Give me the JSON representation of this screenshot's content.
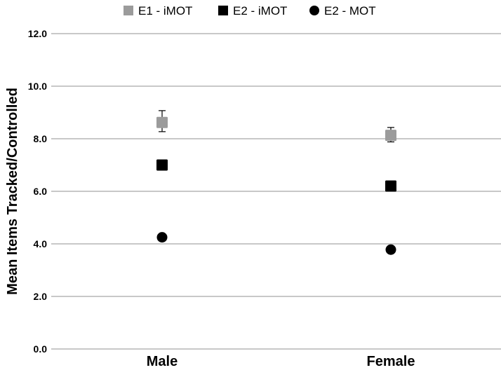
{
  "chart_data": {
    "type": "scatter",
    "title": "",
    "xlabel": "",
    "ylabel": "Mean Items Tracked/Controlled",
    "categories": [
      "Male",
      "Female"
    ],
    "ylim": [
      0,
      12
    ],
    "yticks": [
      0,
      2,
      4,
      6,
      8,
      10,
      12
    ],
    "ytick_labels": [
      "0.0",
      "2.0",
      "4.0",
      "6.0",
      "8.0",
      "10.0",
      "12.0"
    ],
    "grid": "horizontal",
    "legend_position": "top-center",
    "series": [
      {
        "name": "E1 - iMOT",
        "marker": "square",
        "color": "#9b9b9b",
        "values": [
          8.62,
          8.13
        ],
        "error_upper": [
          0.45,
          0.3
        ],
        "error_lower": [
          0.35,
          0.25
        ]
      },
      {
        "name": "E2 - iMOT",
        "marker": "square",
        "color": "#000000",
        "values": [
          7.0,
          6.2
        ]
      },
      {
        "name": "E2 - MOT",
        "marker": "circle",
        "color": "#000000",
        "values": [
          4.25,
          3.78
        ]
      }
    ]
  }
}
